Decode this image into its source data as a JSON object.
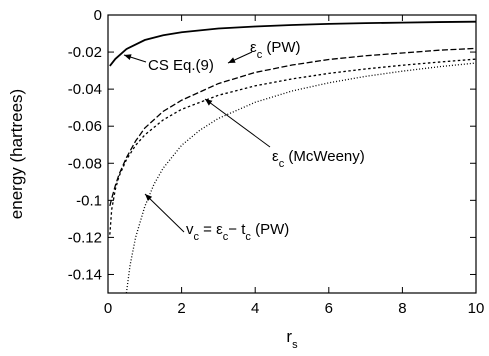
{
  "chart_data": {
    "type": "line",
    "xlabel": "r",
    "xlabel_sub": "s",
    "ylabel": "energy (hartrees)",
    "xlim": [
      0,
      10
    ],
    "ylim": [
      -0.15,
      0
    ],
    "xticks": [
      "0",
      "2",
      "4",
      "6",
      "8",
      "10"
    ],
    "yticks": [
      "0",
      "-0.02",
      "-0.04",
      "-0.06",
      "-0.08",
      "-0.1",
      "-0.12",
      "-0.14"
    ],
    "grid": false,
    "series": [
      {
        "name": "CS Eq.(9)",
        "style": "solid",
        "x": [
          0.05,
          0.2,
          0.5,
          1,
          1.5,
          2,
          3,
          4,
          5,
          6,
          7,
          8,
          9,
          10
        ],
        "y": [
          -0.0275,
          -0.0237,
          -0.0184,
          -0.0135,
          -0.0109,
          -0.0093,
          -0.0073,
          -0.0062,
          -0.0054,
          -0.0048,
          -0.0044,
          -0.0041,
          -0.0038,
          -0.0036
        ]
      },
      {
        "name": "εc (PW)",
        "style": "short-dash",
        "x": [
          0.05,
          0.1,
          0.2,
          0.3,
          0.5,
          0.75,
          1,
          1.5,
          2,
          3,
          4,
          5,
          6,
          7,
          8,
          9,
          10
        ],
        "y": [
          -0.1185,
          -0.105,
          -0.094,
          -0.087,
          -0.0781,
          -0.0703,
          -0.0647,
          -0.0566,
          -0.0509,
          -0.0433,
          -0.0382,
          -0.0345,
          -0.0315,
          -0.0291,
          -0.0271,
          -0.0254,
          -0.0238
        ]
      },
      {
        "name": "εc (McWeeny)",
        "style": "long-dash",
        "x": [
          0.05,
          0.1,
          0.2,
          0.3,
          0.5,
          0.75,
          1,
          1.5,
          2,
          3,
          4,
          5,
          6,
          7,
          8,
          9,
          10
        ],
        "y": [
          -0.103,
          -0.099,
          -0.092,
          -0.086,
          -0.077,
          -0.068,
          -0.061,
          -0.052,
          -0.046,
          -0.037,
          -0.031,
          -0.027,
          -0.024,
          -0.022,
          -0.0205,
          -0.019,
          -0.018
        ]
      },
      {
        "name": "vc = εc − tc (PW)",
        "style": "dotted",
        "x": [
          0.5,
          0.6,
          0.75,
          1,
          1.25,
          1.5,
          2,
          2.5,
          3,
          4,
          5,
          6,
          7,
          8,
          9,
          10
        ],
        "y": [
          -0.15,
          -0.135,
          -0.12,
          -0.1033,
          -0.0913,
          -0.0826,
          -0.0703,
          -0.0621,
          -0.0558,
          -0.0471,
          -0.041,
          -0.0366,
          -0.0331,
          -0.0303,
          -0.0279,
          -0.0259
        ]
      }
    ],
    "annotations": [
      {
        "text": "CS Eq.(9)"
      },
      {
        "text": "ε",
        "sub": "c",
        "rest": " (PW)"
      },
      {
        "text": "ε",
        "sub": "c",
        "rest": " (McWeeny)"
      },
      {
        "text": "v",
        "sub": "c",
        "mid": " = ε",
        "sub2": "c",
        "rest": "− t",
        "sub3": "c",
        "rest2": " (PW)"
      }
    ]
  }
}
